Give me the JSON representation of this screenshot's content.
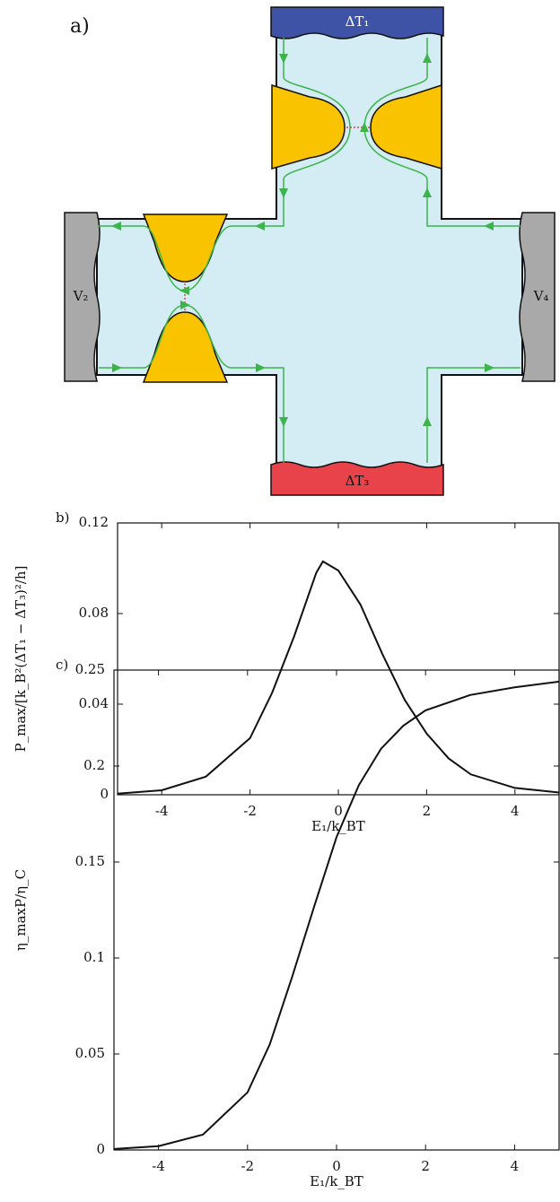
{
  "diagram": {
    "panel_label": "a)",
    "top_contact": "ΔT₁",
    "bottom_contact": "ΔT₃",
    "left_contact": "V₂",
    "right_contact": "V₄"
  },
  "chart_data": [
    {
      "type": "line",
      "panel_label": "b)",
      "x_label": "E₁/k_BT",
      "y_label": "P_max/[k_B²(ΔT₁ − ΔT₃)²/h]",
      "x": [
        -5,
        -4,
        -3,
        -2,
        -1.5,
        -1,
        -0.5,
        -0.35,
        0,
        0.5,
        1,
        1.5,
        2,
        2.5,
        3,
        4,
        5
      ],
      "values": [
        0.0005,
        0.002,
        0.008,
        0.025,
        0.045,
        0.07,
        0.098,
        0.103,
        0.099,
        0.084,
        0.062,
        0.042,
        0.027,
        0.016,
        0.009,
        0.003,
        0.001
      ],
      "color": "#111111",
      "xlim": [
        -5,
        5
      ],
      "ylim": [
        0,
        0.12
      ],
      "xticks": [
        -4,
        -2,
        0,
        2,
        4
      ],
      "yticks": [
        0,
        0.04,
        0.08,
        0.12
      ]
    },
    {
      "type": "line",
      "panel_label": "c)",
      "x_label": "E₁/k_BT",
      "y_label": "η_maxP/η_C",
      "x": [
        -5,
        -4,
        -3,
        -2,
        -1.5,
        -1,
        -0.5,
        0,
        0.5,
        1,
        1.5,
        2,
        3,
        4,
        5
      ],
      "values": [
        0.0005,
        0.002,
        0.008,
        0.03,
        0.055,
        0.09,
        0.127,
        0.163,
        0.19,
        0.209,
        0.221,
        0.229,
        0.237,
        0.241,
        0.244
      ],
      "color": "#111111",
      "xlim": [
        -5,
        5
      ],
      "ylim": [
        0,
        0.25
      ],
      "xticks": [
        -4,
        -2,
        0,
        2,
        4
      ],
      "yticks": [
        0,
        0.05,
        0.1,
        0.15,
        0.2,
        0.25
      ]
    }
  ]
}
